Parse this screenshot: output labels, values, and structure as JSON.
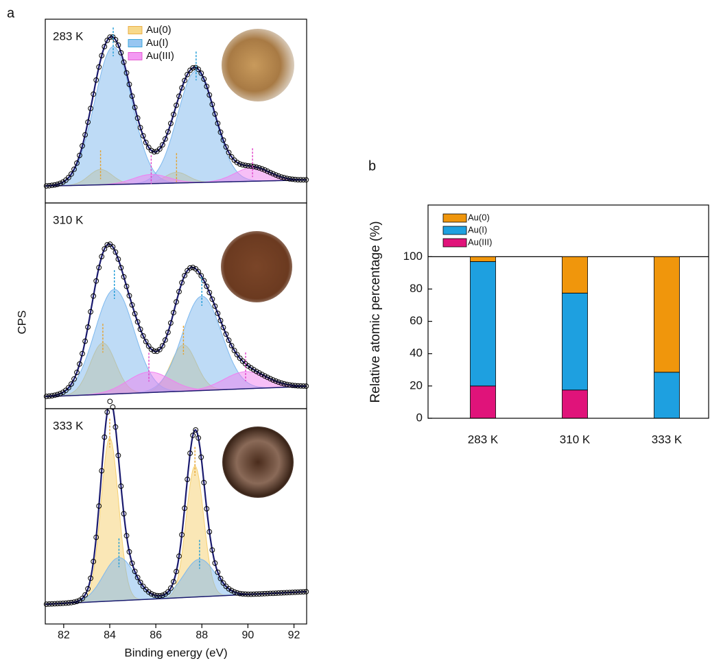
{
  "chart_data": [
    {
      "type": "xps",
      "panel_label": "a",
      "xlabel": "Binding energy (eV)",
      "ylabel": "CPS",
      "xlim": [
        81.2,
        92.55
      ],
      "xticks": [
        82,
        84,
        86,
        88,
        90,
        92
      ],
      "series": [
        {
          "name": "Au(0)",
          "color": "#f5cf6e",
          "line_color": "#e5a02a"
        },
        {
          "name": "Au(I)",
          "color": "#7db8ee",
          "line_color": "#1b9ad6"
        },
        {
          "name": "Au(III)",
          "color": "#f07ff0",
          "line_color": "#e040c8"
        }
      ],
      "panels": [
        {
          "label": "283 K",
          "ylim": [
            0,
            1.2
          ],
          "background": [
            0.11,
            0.15
          ],
          "peaks": [
            {
              "species": "Au(0)",
              "center": 83.6,
              "height": 0.1,
              "fwhm": 1.2
            },
            {
              "species": "Au(0)",
              "center": 86.9,
              "height": 0.07,
              "fwhm": 1.2
            },
            {
              "species": "Au(I)",
              "center": 84.15,
              "height": 0.9,
              "fwhm": 1.9
            },
            {
              "species": "Au(I)",
              "center": 87.75,
              "height": 0.73,
              "fwhm": 1.9
            },
            {
              "species": "Au(III)",
              "center": 85.8,
              "height": 0.06,
              "fwhm": 1.8
            },
            {
              "species": "Au(III)",
              "center": 90.2,
              "height": 0.09,
              "fwhm": 1.8
            }
          ]
        },
        {
          "label": "310 K",
          "ylim": [
            0,
            1.2
          ],
          "background": [
            0.07,
            0.13
          ],
          "peaks": [
            {
              "species": "Au(0)",
              "center": 83.7,
              "height": 0.3,
              "fwhm": 1.3
            },
            {
              "species": "Au(0)",
              "center": 87.2,
              "height": 0.27,
              "fwhm": 1.3
            },
            {
              "species": "Au(I)",
              "center": 84.2,
              "height": 0.61,
              "fwhm": 2.0
            },
            {
              "species": "Au(I)",
              "center": 88.0,
              "height": 0.55,
              "fwhm": 2.0
            },
            {
              "species": "Au(III)",
              "center": 85.7,
              "height": 0.12,
              "fwhm": 2.2
            },
            {
              "species": "Au(III)",
              "center": 89.9,
              "height": 0.1,
              "fwhm": 2.2
            }
          ]
        },
        {
          "label": "333 K",
          "ylim": [
            0,
            1.2
          ],
          "background": [
            0.11,
            0.18
          ],
          "peaks": [
            {
              "species": "Au(0)",
              "center": 84.0,
              "height": 0.91,
              "fwhm": 0.9
            },
            {
              "species": "Au(0)",
              "center": 87.7,
              "height": 0.73,
              "fwhm": 0.9
            },
            {
              "species": "Au(I)",
              "center": 84.4,
              "height": 0.24,
              "fwhm": 1.6
            },
            {
              "species": "Au(I)",
              "center": 87.9,
              "height": 0.21,
              "fwhm": 1.6
            }
          ]
        }
      ]
    },
    {
      "type": "bar",
      "panel_label": "b",
      "ylabel": "Relative atomic percentage (%)",
      "categories": [
        "283 K",
        "310 K",
        "333 K"
      ],
      "series": [
        {
          "name": "Au(III)",
          "color": "#e0137a",
          "values": [
            20,
            17.5,
            0
          ]
        },
        {
          "name": "Au(I)",
          "color": "#1ea0e0",
          "values": [
            77,
            60,
            28.5
          ]
        },
        {
          "name": "Au(0)",
          "color": "#f0960c",
          "values": [
            3,
            22.5,
            71.5
          ]
        }
      ],
      "ylim": [
        0,
        132
      ],
      "yticks": [
        0,
        20,
        40,
        60,
        80,
        100
      ],
      "reference_line": 100,
      "stacked": true,
      "legend": "upper left"
    }
  ]
}
